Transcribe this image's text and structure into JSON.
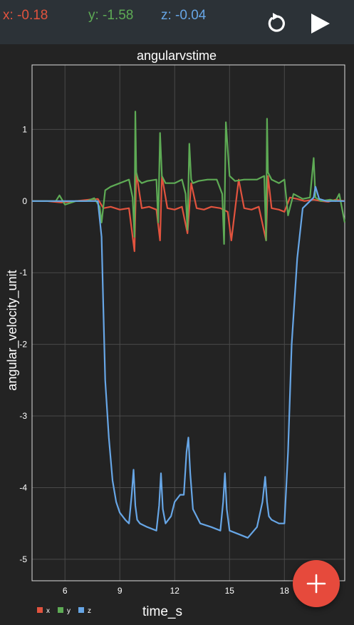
{
  "readouts": {
    "x": {
      "text": "x: -0.18",
      "color": "#e2533e"
    },
    "y": {
      "text": "y: -1.58",
      "color": "#5eab55"
    },
    "z": {
      "text": "z: -0.04",
      "color": "#67a6e6"
    }
  },
  "toolbar": {
    "reset_icon": "reset-icon",
    "play_icon": "play-icon"
  },
  "fab": {
    "icon": "plus-icon",
    "color": "#e64a3c"
  },
  "chart_data": {
    "type": "line",
    "title": "angularvstime",
    "xlabel": "time_s",
    "ylabel": "angular_velocity_unit",
    "xlim": [
      4.2,
      21.3
    ],
    "ylim": [
      -5.3,
      1.9
    ],
    "x_ticks": [
      6,
      9,
      12,
      15,
      18
    ],
    "x_tick_labels": [
      "6",
      "9",
      "12",
      "15",
      "18"
    ],
    "y_ticks": [
      1,
      0,
      -1,
      -2,
      -3,
      -4,
      -5
    ],
    "y_tick_labels": [
      "1",
      "0",
      "-1",
      "-2",
      "-3",
      "-4",
      "-5"
    ],
    "grid": true,
    "legend_position": "bottom-left",
    "series": [
      {
        "name": "x",
        "color": "#e2533e",
        "x": [
          4.2,
          5.0,
          5.8,
          6.6,
          7.3,
          7.8,
          8.1,
          8.5,
          9.0,
          9.5,
          9.8,
          9.9,
          10.2,
          10.6,
          11.0,
          11.2,
          11.3,
          11.6,
          12.0,
          12.4,
          12.7,
          12.9,
          13.2,
          13.6,
          14.0,
          14.5,
          14.9,
          15.1,
          15.5,
          15.8,
          16.2,
          16.6,
          17.0,
          17.1,
          17.3,
          17.7,
          18.0,
          18.3,
          18.7,
          19.1,
          19.6,
          20.0,
          20.4,
          20.8,
          21.3
        ],
        "y": [
          0,
          0,
          -0.02,
          0,
          0.02,
          0.03,
          -0.1,
          -0.08,
          -0.12,
          -0.1,
          -0.7,
          0.4,
          -0.1,
          -0.08,
          -0.12,
          -0.55,
          0.35,
          -0.1,
          -0.12,
          -0.08,
          -0.45,
          0.25,
          -0.1,
          -0.12,
          -0.08,
          -0.1,
          -0.15,
          -0.55,
          0.3,
          -0.1,
          -0.12,
          -0.08,
          -0.55,
          0.35,
          -0.1,
          -0.12,
          -0.15,
          0.05,
          0.03,
          0,
          0.02,
          0,
          -0.01,
          0.02,
          0
        ]
      },
      {
        "name": "y",
        "color": "#5eab55",
        "x": [
          4.2,
          5.0,
          5.5,
          5.7,
          6.0,
          6.6,
          7.2,
          7.6,
          7.9,
          8.0,
          8.2,
          8.5,
          9.0,
          9.5,
          9.7,
          9.8,
          9.85,
          9.9,
          10.0,
          10.2,
          10.5,
          11.0,
          11.1,
          11.2,
          11.3,
          11.5,
          12.0,
          12.4,
          12.6,
          12.7,
          12.8,
          12.9,
          13.0,
          13.3,
          13.8,
          14.3,
          14.6,
          14.7,
          14.8,
          15.0,
          15.3,
          15.8,
          16.5,
          16.9,
          17.0,
          17.05,
          17.1,
          17.3,
          17.7,
          18.0,
          18.2,
          18.5,
          19.0,
          19.4,
          19.6,
          19.7,
          20.0,
          20.5,
          20.8,
          21.0,
          21.3
        ],
        "y": [
          0,
          0,
          0,
          0.08,
          -0.05,
          0,
          0,
          0.04,
          -0.08,
          -0.3,
          0.15,
          0.2,
          0.25,
          0.3,
          0.05,
          -0.5,
          1.25,
          0.4,
          0.3,
          0.25,
          0.28,
          0.3,
          -0.3,
          0.95,
          0.35,
          0.25,
          0.25,
          0.3,
          0.1,
          -0.4,
          0.8,
          0.3,
          0.25,
          0.28,
          0.3,
          0.3,
          0.1,
          -0.6,
          1.1,
          0.35,
          0.28,
          0.3,
          0.3,
          0.35,
          -0.55,
          1.15,
          0.4,
          0.3,
          0.25,
          0.3,
          -0.2,
          0.1,
          0.03,
          0.05,
          0.6,
          0.05,
          0,
          0.02,
          0,
          0.1,
          -0.3
        ]
      },
      {
        "name": "z",
        "color": "#67a6e6",
        "x": [
          4.2,
          5.0,
          6.0,
          7.0,
          7.8,
          8.0,
          8.1,
          8.2,
          8.4,
          8.6,
          8.8,
          9.0,
          9.3,
          9.5,
          9.65,
          9.75,
          9.85,
          9.95,
          10.1,
          10.5,
          11.0,
          11.15,
          11.25,
          11.35,
          11.5,
          11.8,
          12.0,
          12.3,
          12.5,
          12.65,
          12.75,
          12.85,
          13.0,
          13.4,
          14.0,
          14.5,
          14.65,
          14.75,
          14.85,
          15.0,
          15.5,
          16.0,
          16.5,
          16.8,
          16.95,
          17.05,
          17.15,
          17.3,
          17.7,
          18.0,
          18.2,
          18.4,
          18.7,
          19.0,
          19.4,
          19.6,
          19.7,
          19.9,
          20.3,
          20.8,
          21.3
        ],
        "y": [
          0,
          0,
          0,
          0,
          0,
          -0.5,
          -1.5,
          -2.5,
          -3.3,
          -3.9,
          -4.2,
          -4.35,
          -4.45,
          -4.5,
          -4.1,
          -3.75,
          -4.25,
          -4.45,
          -4.5,
          -4.55,
          -4.6,
          -4.25,
          -3.8,
          -4.3,
          -4.5,
          -4.4,
          -4.2,
          -4.1,
          -4.1,
          -3.5,
          -3.3,
          -3.8,
          -4.3,
          -4.5,
          -4.55,
          -4.6,
          -4.2,
          -3.8,
          -4.3,
          -4.6,
          -4.65,
          -4.7,
          -4.55,
          -4.2,
          -3.85,
          -4.2,
          -4.4,
          -4.45,
          -4.5,
          -4.5,
          -3.5,
          -2.0,
          -0.8,
          -0.1,
          0,
          0.05,
          0.2,
          0.03,
          0,
          0,
          0
        ]
      }
    ]
  }
}
